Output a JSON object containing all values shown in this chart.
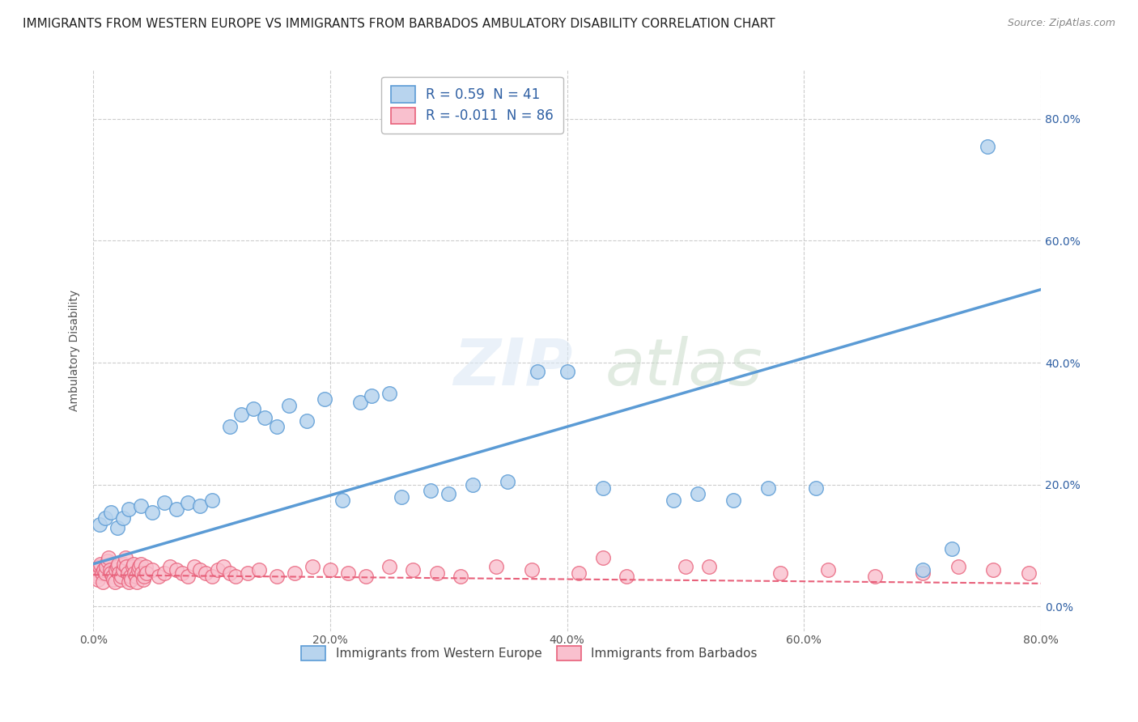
{
  "title": "IMMIGRANTS FROM WESTERN EUROPE VS IMMIGRANTS FROM BARBADOS AMBULATORY DISABILITY CORRELATION CHART",
  "source": "Source: ZipAtlas.com",
  "ylabel": "Ambulatory Disability",
  "xlim": [
    0.0,
    0.8
  ],
  "ylim": [
    -0.04,
    0.88
  ],
  "xticks": [
    0.0,
    0.2,
    0.4,
    0.6,
    0.8
  ],
  "yticks": [
    0.0,
    0.2,
    0.4,
    0.6,
    0.8
  ],
  "xtick_labels": [
    "0.0%",
    "20.0%",
    "40.0%",
    "60.0%",
    "80.0%"
  ],
  "ytick_right_labels": [
    "0.0%",
    "20.0%",
    "40.0%",
    "60.0%",
    "80.0%"
  ],
  "series1_name": "Immigrants from Western Europe",
  "series1_color": "#b8d4ee",
  "series1_edge_color": "#5b9bd5",
  "series1_R": 0.59,
  "series1_N": 41,
  "series1_line_start_y": 0.07,
  "series1_line_end_y": 0.52,
  "series2_name": "Immigrants from Barbados",
  "series2_color": "#f9c0ce",
  "series2_edge_color": "#e8607a",
  "series2_R": -0.011,
  "series2_N": 86,
  "series2_line_start_y": 0.052,
  "series2_line_end_y": 0.038,
  "background_color": "#ffffff",
  "grid_color": "#cccccc",
  "legend_R_color": "#2e5fa3",
  "title_fontsize": 11,
  "axis_label_fontsize": 10,
  "tick_fontsize": 10,
  "series1_x": [
    0.005,
    0.01,
    0.015,
    0.02,
    0.025,
    0.03,
    0.04,
    0.05,
    0.06,
    0.07,
    0.08,
    0.09,
    0.1,
    0.115,
    0.125,
    0.135,
    0.145,
    0.155,
    0.165,
    0.18,
    0.195,
    0.21,
    0.225,
    0.235,
    0.25,
    0.26,
    0.285,
    0.3,
    0.32,
    0.35,
    0.375,
    0.4,
    0.43,
    0.49,
    0.51,
    0.54,
    0.57,
    0.61,
    0.7,
    0.725,
    0.755
  ],
  "series1_y": [
    0.135,
    0.145,
    0.155,
    0.13,
    0.145,
    0.16,
    0.165,
    0.155,
    0.17,
    0.16,
    0.17,
    0.165,
    0.175,
    0.295,
    0.315,
    0.325,
    0.31,
    0.295,
    0.33,
    0.305,
    0.34,
    0.175,
    0.335,
    0.345,
    0.35,
    0.18,
    0.19,
    0.185,
    0.2,
    0.205,
    0.385,
    0.385,
    0.195,
    0.175,
    0.185,
    0.175,
    0.195,
    0.195,
    0.06,
    0.095,
    0.755
  ],
  "series2_x": [
    0.001,
    0.002,
    0.003,
    0.004,
    0.005,
    0.006,
    0.007,
    0.008,
    0.009,
    0.01,
    0.011,
    0.012,
    0.013,
    0.014,
    0.015,
    0.016,
    0.017,
    0.018,
    0.019,
    0.02,
    0.021,
    0.022,
    0.023,
    0.024,
    0.025,
    0.026,
    0.027,
    0.028,
    0.029,
    0.03,
    0.031,
    0.032,
    0.033,
    0.034,
    0.035,
    0.036,
    0.037,
    0.038,
    0.039,
    0.04,
    0.041,
    0.042,
    0.043,
    0.044,
    0.045,
    0.05,
    0.055,
    0.06,
    0.065,
    0.07,
    0.075,
    0.08,
    0.085,
    0.09,
    0.095,
    0.1,
    0.105,
    0.11,
    0.115,
    0.12,
    0.13,
    0.14,
    0.155,
    0.17,
    0.185,
    0.2,
    0.215,
    0.23,
    0.25,
    0.27,
    0.29,
    0.31,
    0.34,
    0.37,
    0.41,
    0.45,
    0.52,
    0.58,
    0.62,
    0.66,
    0.7,
    0.73,
    0.76,
    0.79,
    0.43,
    0.5
  ],
  "series2_y": [
    0.055,
    0.06,
    0.05,
    0.045,
    0.065,
    0.07,
    0.055,
    0.04,
    0.06,
    0.055,
    0.065,
    0.075,
    0.08,
    0.06,
    0.055,
    0.05,
    0.045,
    0.04,
    0.06,
    0.065,
    0.07,
    0.055,
    0.045,
    0.05,
    0.06,
    0.07,
    0.08,
    0.065,
    0.055,
    0.04,
    0.05,
    0.045,
    0.065,
    0.07,
    0.055,
    0.05,
    0.04,
    0.06,
    0.065,
    0.07,
    0.055,
    0.045,
    0.05,
    0.065,
    0.055,
    0.06,
    0.05,
    0.055,
    0.065,
    0.06,
    0.055,
    0.05,
    0.065,
    0.06,
    0.055,
    0.05,
    0.06,
    0.065,
    0.055,
    0.05,
    0.055,
    0.06,
    0.05,
    0.055,
    0.065,
    0.06,
    0.055,
    0.05,
    0.065,
    0.06,
    0.055,
    0.05,
    0.065,
    0.06,
    0.055,
    0.05,
    0.065,
    0.055,
    0.06,
    0.05,
    0.055,
    0.065,
    0.06,
    0.055,
    0.08,
    0.065
  ]
}
